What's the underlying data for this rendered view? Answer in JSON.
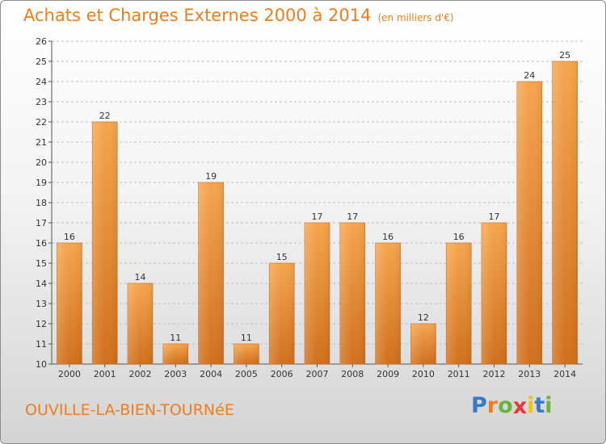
{
  "title": "Achats et Charges Externes 2000 à 2014",
  "subtitle": "(en milliers d'€)",
  "city": "OUVILLE-LA-BIEN-TOURNéE",
  "logo": {
    "letters": [
      "P",
      "r",
      "o",
      "x",
      "i",
      "t",
      "i"
    ],
    "colors": [
      "#3a78c9",
      "#f07d1a",
      "#6cb33e",
      "#e23a3a",
      "#f4c20d",
      "#3a78c9",
      "#6cb33e"
    ]
  },
  "colors": {
    "accent": "#f07d1a",
    "bar_light": "#f6a54e",
    "bar_dark": "#d0701d"
  },
  "chart_data": {
    "type": "bar",
    "categories": [
      "2000",
      "2001",
      "2002",
      "2003",
      "2004",
      "2005",
      "2006",
      "2007",
      "2008",
      "2009",
      "2010",
      "2011",
      "2012",
      "2013",
      "2014"
    ],
    "values": [
      16,
      22,
      14,
      11,
      19,
      11,
      15,
      17,
      17,
      16,
      12,
      16,
      17,
      24,
      25
    ],
    "ylim": [
      10,
      26
    ],
    "yticks": [
      10,
      11,
      12,
      13,
      14,
      15,
      16,
      17,
      18,
      19,
      20,
      21,
      22,
      23,
      24,
      25,
      26
    ],
    "grid": true,
    "data_labels": true
  }
}
